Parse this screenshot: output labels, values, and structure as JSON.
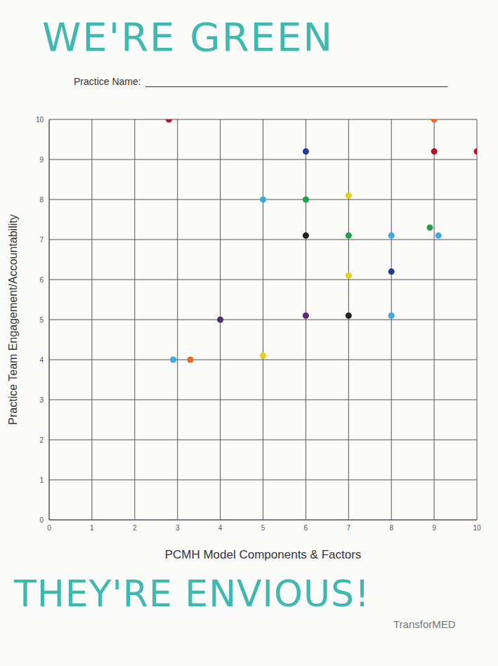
{
  "chart_data": {
    "type": "scatter",
    "title": "WE'RE GREEN",
    "subtitle": "Practice Name:",
    "x_label": "PCMH Model Components & Factors",
    "y_label": "Practice Team Engagement/Accountability",
    "annotations": [
      "THEY'RE ENVIOUS!",
      "TransforMED"
    ],
    "x": [
      2.8,
      9,
      6,
      9,
      10,
      5,
      6,
      7,
      6,
      7,
      8,
      8.9,
      9.1,
      7,
      8,
      4,
      6,
      7,
      8,
      2.9,
      3.3,
      5
    ],
    "values": [
      10,
      10,
      9.2,
      9.2,
      9.2,
      8,
      8,
      8.1,
      7.1,
      7.1,
      7.1,
      7.3,
      7.1,
      6.1,
      6.2,
      5,
      5.1,
      5.1,
      5.1,
      4,
      4,
      4.1
    ],
    "colors": [
      "#b3132b",
      "#f26522",
      "#1f3d99",
      "#b3132b",
      "#b3132b",
      "#3fa9e0",
      "#1ea04a",
      "#e3d21c",
      "#222222",
      "#1ea04a",
      "#3fa9e0",
      "#1ea04a",
      "#3fa9e0",
      "#e3d21c",
      "#1f3d99",
      "#5a2a6e",
      "#5a2a6e",
      "#222222",
      "#3fa9e0",
      "#3fa9e0",
      "#f26522",
      "#e3d21c"
    ],
    "marker": "circle",
    "xlim": [
      0,
      10
    ],
    "ylim": [
      0,
      10
    ],
    "xticks": [
      0,
      1,
      2,
      3,
      4,
      5,
      6,
      7,
      8,
      9,
      10
    ],
    "yticks": [
      0,
      1,
      2,
      3,
      4,
      5,
      6,
      7,
      8,
      9,
      10
    ],
    "grid": true
  }
}
